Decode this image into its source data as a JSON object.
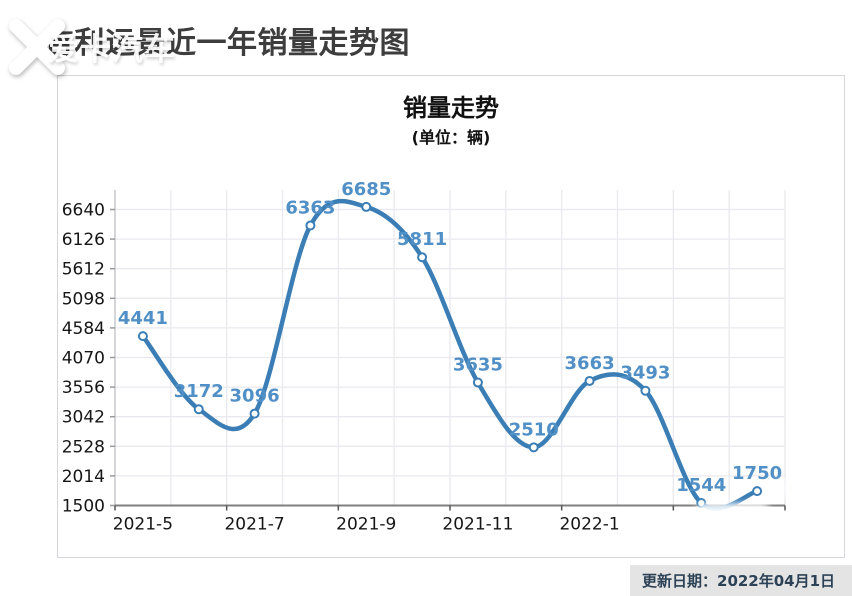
{
  "page": {
    "title": "吉利远景近一年销量走势图",
    "watermark_text": "爱卡汽车",
    "footer": {
      "update_label": "更新日期：2022年04月1日"
    }
  },
  "chart_data": {
    "type": "line",
    "title": "销量走势",
    "subtitle": "(单位：辆)",
    "categories": [
      "2021-5",
      "2021-6",
      "2021-7",
      "2021-8",
      "2021-9",
      "2021-10",
      "2021-11",
      "2021-12",
      "2022-1",
      "2022-2",
      "2022-3",
      "2022-4"
    ],
    "values": [
      4441,
      3172,
      3096,
      6363,
      6685,
      5811,
      3635,
      2510,
      3663,
      3493,
      1544,
      1750
    ],
    "x_tick_labels": [
      "2021-5",
      "2021-7",
      "2021-9",
      "2021-11",
      "2022-1",
      ""
    ],
    "y_ticks": [
      6640,
      6126,
      5612,
      5098,
      4584,
      4070,
      3556,
      3042,
      2528,
      2014,
      1500
    ],
    "ylim": [
      1500,
      6640
    ],
    "grid": true,
    "legend": "none",
    "line_color": "#3b7eb5",
    "label_color": "#5190c6",
    "marker_fill": "#ffffff",
    "grid_color": "#e9e9ef",
    "x_axis_color": "#808080",
    "y_axis_color": "#c9c9ce",
    "tick_text_color": "#161616"
  }
}
